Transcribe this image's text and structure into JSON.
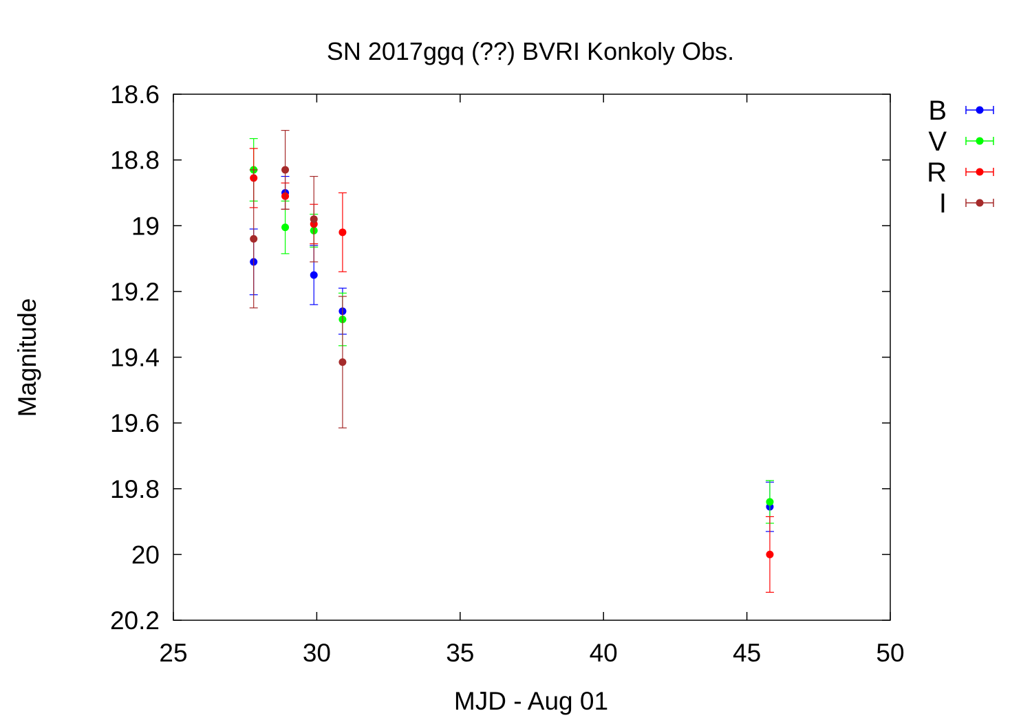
{
  "chart_data": {
    "type": "scatter",
    "title": "SN 2017ggq (??) BVRI Konkoly Obs.",
    "xlabel": "MJD - Aug 01",
    "ylabel": "Magnitude",
    "xlim": [
      25,
      50
    ],
    "ylim": [
      18.6,
      20.2
    ],
    "y_inverted": true,
    "error_bars": true,
    "grid": false,
    "legend_position": "right, outside plot",
    "x_ticks": [
      "25",
      "30",
      "35",
      "40",
      "45",
      "50"
    ],
    "y_ticks": [
      "18.6",
      "18.8",
      "19",
      "19.2",
      "19.4",
      "19.6",
      "19.8",
      "20",
      "20.2"
    ],
    "series": [
      {
        "name": "B",
        "color": "#0000ff",
        "points": [
          {
            "x": 27.8,
            "y": 19.11,
            "err": 0.1
          },
          {
            "x": 28.9,
            "y": 18.9,
            "err": 0.05
          },
          {
            "x": 29.9,
            "y": 19.15,
            "err": 0.09
          },
          {
            "x": 30.9,
            "y": 19.26,
            "err": 0.07
          },
          {
            "x": 45.8,
            "y": 19.855,
            "err": 0.075
          }
        ]
      },
      {
        "name": "V",
        "color": "#00ff00",
        "points": [
          {
            "x": 27.8,
            "y": 18.83,
            "err": 0.095
          },
          {
            "x": 28.9,
            "y": 19.005,
            "err": 0.08
          },
          {
            "x": 29.9,
            "y": 19.015,
            "err": 0.05
          },
          {
            "x": 30.9,
            "y": 19.285,
            "err": 0.08
          },
          {
            "x": 45.8,
            "y": 19.84,
            "err": 0.065
          }
        ]
      },
      {
        "name": "R",
        "color": "#ff0000",
        "points": [
          {
            "x": 27.8,
            "y": 18.855,
            "err": 0.09
          },
          {
            "x": 28.9,
            "y": 18.91,
            "err": 0.04
          },
          {
            "x": 29.9,
            "y": 18.995,
            "err": 0.06
          },
          {
            "x": 30.9,
            "y": 19.02,
            "err": 0.12
          },
          {
            "x": 45.8,
            "y": 20.0,
            "err": 0.115
          }
        ]
      },
      {
        "name": "I",
        "color": "#a52a2a",
        "points": [
          {
            "x": 27.8,
            "y": 19.04,
            "err": 0.21
          },
          {
            "x": 28.9,
            "y": 18.83,
            "err": 0.12
          },
          {
            "x": 29.9,
            "y": 18.98,
            "err": 0.13
          },
          {
            "x": 30.9,
            "y": 19.415,
            "err": 0.2
          }
        ]
      }
    ]
  }
}
